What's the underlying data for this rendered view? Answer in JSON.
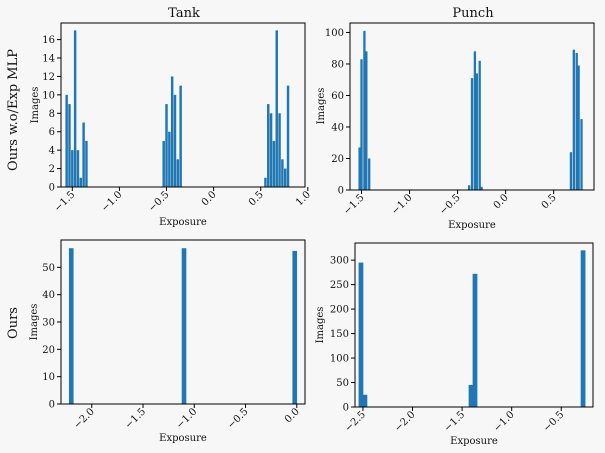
{
  "figure": {
    "column_titles": [
      "Tank",
      "Punch"
    ],
    "row_labels": [
      "Ours w.o/Exp MLP",
      "Ours"
    ]
  },
  "chart_data": [
    {
      "type": "bar",
      "title": "Tank",
      "row_label": "Ours w.o/Exp MLP",
      "xlabel": "Exposure",
      "ylabel": "Images",
      "xlim": [
        -1.62,
        0.97
      ],
      "ylim": [
        0,
        17.8
      ],
      "xticks": [
        -1.5,
        -1.0,
        -0.5,
        0.0,
        0.5,
        1.0
      ],
      "xtick_labels": [
        "−1.5",
        "−1.0",
        "−0.5",
        "0.0",
        "0.5",
        "1.0"
      ],
      "yticks": [
        0,
        2,
        4,
        6,
        8,
        10,
        12,
        14,
        16
      ],
      "bar_width": 0.026,
      "bars": [
        {
          "x": -1.56,
          "y": 10
        },
        {
          "x": -1.53,
          "y": 9
        },
        {
          "x": -1.5,
          "y": 4
        },
        {
          "x": -1.47,
          "y": 17
        },
        {
          "x": -1.44,
          "y": 4
        },
        {
          "x": -1.41,
          "y": 1
        },
        {
          "x": -1.38,
          "y": 7
        },
        {
          "x": -1.35,
          "y": 5
        },
        {
          "x": -0.53,
          "y": 5
        },
        {
          "x": -0.5,
          "y": 9
        },
        {
          "x": -0.47,
          "y": 6
        },
        {
          "x": -0.44,
          "y": 12
        },
        {
          "x": -0.41,
          "y": 10
        },
        {
          "x": -0.38,
          "y": 3
        },
        {
          "x": -0.35,
          "y": 11
        },
        {
          "x": 0.55,
          "y": 1
        },
        {
          "x": 0.58,
          "y": 9
        },
        {
          "x": 0.61,
          "y": 8
        },
        {
          "x": 0.64,
          "y": 5
        },
        {
          "x": 0.67,
          "y": 17
        },
        {
          "x": 0.7,
          "y": 8
        },
        {
          "x": 0.73,
          "y": 3
        },
        {
          "x": 0.76,
          "y": 2
        },
        {
          "x": 0.79,
          "y": 11
        }
      ]
    },
    {
      "type": "bar",
      "title": "Punch",
      "row_label": "",
      "xlabel": "Exposure",
      "ylabel": "Images",
      "xlim": [
        -1.62,
        0.92
      ],
      "ylim": [
        0,
        106
      ],
      "xticks": [
        -1.5,
        -1.0,
        -0.5,
        0.0,
        0.5
      ],
      "xtick_labels": [
        "−1.5",
        "−1.0",
        "−0.5",
        "0.0",
        "0.5"
      ],
      "yticks": [
        0,
        20,
        40,
        60,
        80,
        100
      ],
      "bar_width": 0.024,
      "bars": [
        {
          "x": -1.52,
          "y": 27
        },
        {
          "x": -1.5,
          "y": 83
        },
        {
          "x": -1.47,
          "y": 101
        },
        {
          "x": -1.45,
          "y": 88
        },
        {
          "x": -1.42,
          "y": 20
        },
        {
          "x": -0.38,
          "y": 3
        },
        {
          "x": -0.35,
          "y": 71
        },
        {
          "x": -0.32,
          "y": 88
        },
        {
          "x": -0.3,
          "y": 74
        },
        {
          "x": -0.27,
          "y": 82
        },
        {
          "x": -0.25,
          "y": 2
        },
        {
          "x": 0.68,
          "y": 24
        },
        {
          "x": 0.71,
          "y": 89
        },
        {
          "x": 0.74,
          "y": 87
        },
        {
          "x": 0.76,
          "y": 79
        },
        {
          "x": 0.79,
          "y": 45
        }
      ]
    },
    {
      "type": "bar",
      "title": "",
      "row_label": "Ours",
      "xlabel": "Exposure",
      "ylabel": "Images",
      "xlim": [
        -2.3,
        0.08
      ],
      "ylim": [
        0,
        60
      ],
      "xticks": [
        -2.0,
        -1.5,
        -1.0,
        -0.5,
        0.0
      ],
      "xtick_labels": [
        "−2.0",
        "−1.5",
        "−1.0",
        "−0.5",
        "0.0"
      ],
      "yticks": [
        0,
        10,
        20,
        30,
        40,
        50
      ],
      "bar_width": 0.045,
      "bars": [
        {
          "x": -2.2,
          "y": 57
        },
        {
          "x": -1.1,
          "y": 57
        },
        {
          "x": -0.02,
          "y": 56
        }
      ]
    },
    {
      "type": "bar",
      "title": "",
      "row_label": "",
      "xlabel": "Exposure",
      "ylabel": "Images",
      "xlim": [
        -2.58,
        -0.18
      ],
      "ylim": [
        0,
        335
      ],
      "xticks": [
        -2.5,
        -2.0,
        -1.5,
        -1.0,
        -0.5
      ],
      "xtick_labels": [
        "−2.5",
        "−2.0",
        "−1.5",
        "−1.0",
        "−0.5"
      ],
      "yticks": [
        0,
        50,
        100,
        150,
        200,
        250,
        300
      ],
      "bar_width": 0.048,
      "bars": [
        {
          "x": -2.52,
          "y": 295
        },
        {
          "x": -2.48,
          "y": 25
        },
        {
          "x": -1.41,
          "y": 45
        },
        {
          "x": -1.37,
          "y": 272
        },
        {
          "x": -0.28,
          "y": 320
        }
      ]
    }
  ]
}
